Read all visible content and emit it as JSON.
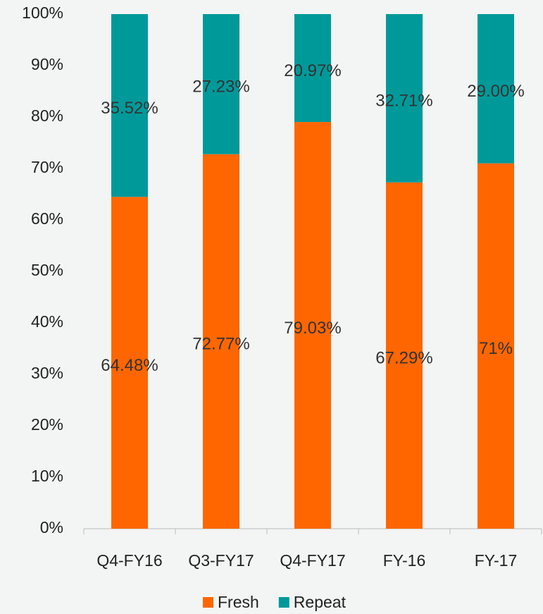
{
  "chart_data": {
    "type": "stacked-bar",
    "categories": [
      "Q4-FY16",
      "Q3-FY17",
      "Q4-FY17",
      "FY-16",
      "FY-17"
    ],
    "series": [
      {
        "name": "Fresh",
        "color": "#ff6600",
        "values": [
          64.48,
          72.77,
          79.03,
          67.29,
          71
        ],
        "value_labels": [
          "64.48%",
          "72.77%",
          "79.03%",
          "67.29%",
          "71%"
        ]
      },
      {
        "name": "Repeat",
        "color": "#009999",
        "values": [
          35.52,
          27.23,
          20.97,
          32.71,
          29.0
        ],
        "value_labels": [
          "35.52%",
          "27.23%",
          "20.97%",
          "32.71%",
          "29.00%"
        ]
      }
    ],
    "ylim": [
      0,
      100
    ],
    "yticks": [
      {
        "value": 0,
        "label": "0%"
      },
      {
        "value": 10,
        "label": "10%"
      },
      {
        "value": 20,
        "label": "20%"
      },
      {
        "value": 30,
        "label": "30%"
      },
      {
        "value": 40,
        "label": "40%"
      },
      {
        "value": 50,
        "label": "50%"
      },
      {
        "value": 60,
        "label": "60%"
      },
      {
        "value": 70,
        "label": "70%"
      },
      {
        "value": 80,
        "label": "80%"
      },
      {
        "value": 90,
        "label": "90%"
      },
      {
        "value": 100,
        "label": "100%"
      }
    ],
    "legend": "bottom",
    "grid": false
  }
}
